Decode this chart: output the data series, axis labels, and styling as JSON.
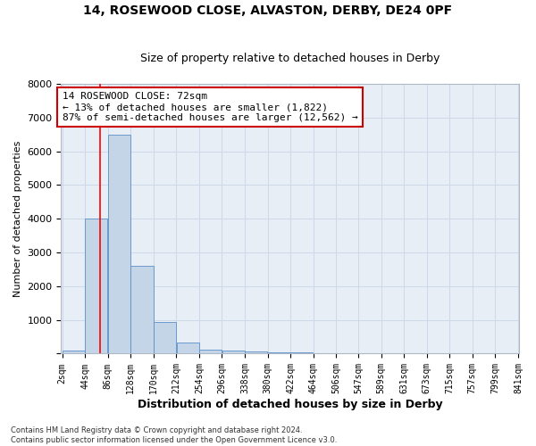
{
  "title1": "14, ROSEWOOD CLOSE, ALVASTON, DERBY, DE24 0PF",
  "title2": "Size of property relative to detached houses in Derby",
  "xlabel": "Distribution of detached houses by size in Derby",
  "ylabel": "Number of detached properties",
  "bar_values": [
    100,
    4000,
    6500,
    2600,
    950,
    320,
    130,
    90,
    70,
    50,
    30,
    20,
    10,
    5,
    3,
    2,
    1,
    1,
    1,
    0
  ],
  "bin_edges": [
    2,
    44,
    86,
    128,
    170,
    212,
    254,
    296,
    338,
    380,
    422,
    464,
    506,
    547,
    589,
    631,
    673,
    715,
    757,
    799,
    841
  ],
  "tick_labels": [
    "2sqm",
    "44sqm",
    "86sqm",
    "128sqm",
    "170sqm",
    "212sqm",
    "254sqm",
    "296sqm",
    "338sqm",
    "380sqm",
    "422sqm",
    "464sqm",
    "506sqm",
    "547sqm",
    "589sqm",
    "631sqm",
    "673sqm",
    "715sqm",
    "757sqm",
    "799sqm",
    "841sqm"
  ],
  "bar_color": "#c5d5e8",
  "bar_edge_color": "#5b8fc9",
  "grid_color": "#cdd8e8",
  "bg_color": "#e8eef6",
  "red_line_x": 72,
  "annotation_text": "14 ROSEWOOD CLOSE: 72sqm\n← 13% of detached houses are smaller (1,822)\n87% of semi-detached houses are larger (12,562) →",
  "annotation_box_color": "#ffffff",
  "annotation_box_edge_color": "#cc0000",
  "ylim": [
    0,
    8000
  ],
  "yticks": [
    0,
    1000,
    2000,
    3000,
    4000,
    5000,
    6000,
    7000,
    8000
  ],
  "footer1": "Contains HM Land Registry data © Crown copyright and database right 2024.",
  "footer2": "Contains public sector information licensed under the Open Government Licence v3.0."
}
